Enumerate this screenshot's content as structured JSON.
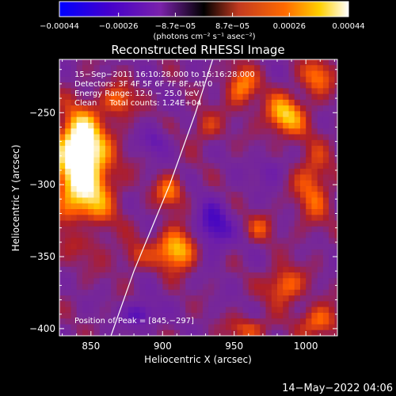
{
  "chart_data": {
    "type": "heatmap",
    "title": "Reconstructed RHESSI Image",
    "xlabel": "Heliocentric X (arcsec)",
    "ylabel": "Heliocentric Y (arcsec)",
    "xlim": [
      828,
      1022
    ],
    "ylim": [
      -405,
      -213
    ],
    "x_ticks": [
      850,
      900,
      950,
      1000
    ],
    "y_ticks": [
      -250,
      -300,
      -350,
      -400
    ],
    "x_tick_labels": [
      "850",
      "900",
      "950",
      "1000"
    ],
    "y_tick_labels": [
      "−250",
      "−300",
      "−350",
      "−400"
    ],
    "colorbar": {
      "range": [
        -0.00044,
        0.00044
      ],
      "ticks": [
        -0.00044,
        -0.00026,
        -8.7e-05,
        8.7e-05,
        0.00026,
        0.00044
      ],
      "tick_labels": [
        "−0.00044",
        "−0.00026",
        "−8.7e−05",
        "8.7e−05",
        "0.00026",
        "0.00044"
      ],
      "unit_label": "(photons cm⁻² s⁻¹ asec⁻²)",
      "colors": [
        "#0000ff",
        "#4400cc",
        "#7a22aa",
        "#c23a20",
        "#ff6a00",
        "#ffd000",
        "#ffffff"
      ]
    },
    "annotations": {
      "time_range": "15−Sep−2011 16:10:28.000 to 16:16:28.000",
      "detectors": "Detectors: 3F 4F 5F 6F 7F 8F, Att 0",
      "energy": "Energy Range: 12.0 − 25.0 keV",
      "method": "Clean     Total counts: 1.24E+04",
      "peak": "Position of Peak = [845,−297]"
    },
    "peak": {
      "x": 845,
      "y": -297
    },
    "limb_curve": [
      [
        864,
        -405
      ],
      [
        880,
        -360
      ],
      [
        905,
        -300
      ],
      [
        923,
        -250
      ],
      [
        935,
        -213
      ]
    ],
    "grid": false,
    "sources": [
      {
        "x": 845,
        "y": -297,
        "sx": 14,
        "sy": 28,
        "amp": 1.0
      },
      {
        "x": 842,
        "y": -270,
        "sx": 10,
        "sy": 14,
        "amp": 0.7
      },
      {
        "x": 910,
        "y": -345,
        "sx": 10,
        "sy": 10,
        "amp": 0.85
      },
      {
        "x": 905,
        "y": -305,
        "sx": 7,
        "sy": 8,
        "amp": 0.55
      },
      {
        "x": 985,
        "y": -252,
        "sx": 10,
        "sy": 10,
        "amp": 0.75
      },
      {
        "x": 955,
        "y": -232,
        "sx": 8,
        "sy": 10,
        "amp": 0.6
      },
      {
        "x": 1005,
        "y": -300,
        "sx": 9,
        "sy": 20,
        "amp": 0.5
      },
      {
        "x": 1008,
        "y": -225,
        "sx": 8,
        "sy": 9,
        "amp": 0.55
      },
      {
        "x": 985,
        "y": -370,
        "sx": 9,
        "sy": 9,
        "amp": 0.6
      },
      {
        "x": 1010,
        "y": -395,
        "sx": 10,
        "sy": 8,
        "amp": 0.55
      },
      {
        "x": 960,
        "y": -400,
        "sx": 10,
        "sy": 6,
        "amp": 0.45
      },
      {
        "x": 870,
        "y": -242,
        "sx": 8,
        "sy": 8,
        "amp": 0.5
      },
      {
        "x": 880,
        "y": -350,
        "sx": 7,
        "sy": 7,
        "amp": 0.35
      },
      {
        "x": 930,
        "y": -260,
        "sx": 8,
        "sy": 8,
        "amp": 0.35
      },
      {
        "x": 968,
        "y": -330,
        "sx": 7,
        "sy": 7,
        "amp": 0.35
      }
    ],
    "negatives": [
      {
        "x": 935,
        "y": -330,
        "sx": 9,
        "sy": 12,
        "amp": 0.6
      },
      {
        "x": 885,
        "y": -390,
        "sx": 8,
        "sy": 6,
        "amp": 0.55
      },
      {
        "x": 845,
        "y": -330,
        "sx": 7,
        "sy": 7,
        "amp": 0.4
      },
      {
        "x": 895,
        "y": -270,
        "sx": 7,
        "sy": 7,
        "amp": 0.35
      },
      {
        "x": 975,
        "y": -290,
        "sx": 7,
        "sy": 7,
        "amp": 0.3
      }
    ]
  },
  "footer_date": "14−May−2022 04:06"
}
